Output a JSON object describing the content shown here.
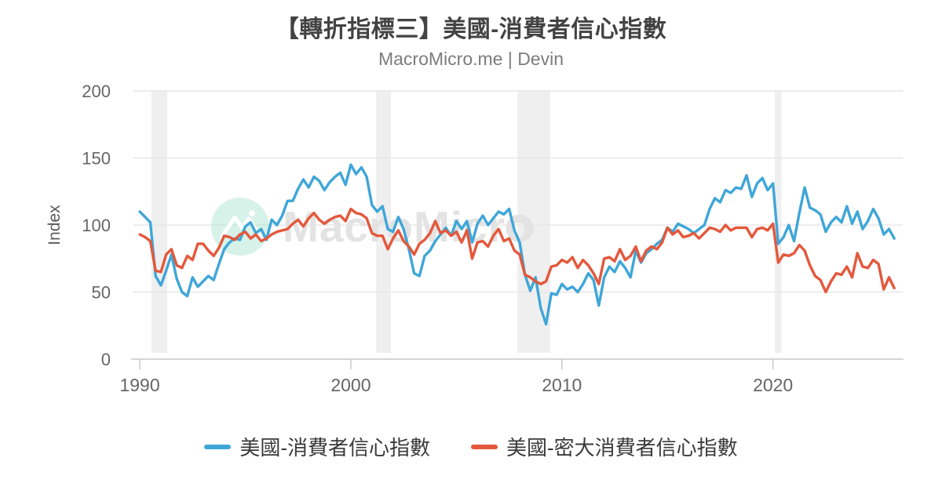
{
  "page": {
    "title": "【轉折指標三】美國-消費者信心指數",
    "subtitle": "MacroMicro.me | Devin"
  },
  "watermark": {
    "text": "MacroMicro",
    "icon": "mountain-logo",
    "circle_color": "#aee6d4",
    "text_color": "#e3e3e3"
  },
  "chart_data": {
    "type": "line",
    "title": "【轉折指標三】美國-消費者信心指數",
    "subtitle": "MacroMicro.me | Devin",
    "xlabel": "",
    "ylabel": "Index",
    "ylim": [
      0,
      200
    ],
    "xlim": [
      1989.7,
      2026.15
    ],
    "y_ticks": [
      0,
      50,
      100,
      150,
      200
    ],
    "x_ticks": [
      1990,
      2000,
      2010,
      2020
    ],
    "grid": "horizontal-only",
    "legend_position": "bottom-center",
    "band_color": "#efefef",
    "recession_bands_x": [
      [
        1990.55,
        1991.3
      ],
      [
        2001.2,
        2001.9
      ],
      [
        2007.9,
        2009.45
      ],
      [
        2020.08,
        2020.4
      ]
    ],
    "x_start": 1990,
    "x_step_years": 0.25,
    "x_end": 2025.75,
    "series": [
      {
        "name": "美國-消費者信心指數",
        "color": "#3FA6D8",
        "values": [
          110,
          106,
          102,
          62,
          55,
          66,
          78,
          60,
          50,
          47,
          61,
          54,
          58,
          62,
          59,
          71,
          82,
          87,
          90,
          89,
          99,
          102,
          94,
          97,
          89,
          104,
          100,
          107,
          118,
          118,
          127,
          134,
          128,
          136,
          133,
          126,
          132,
          136,
          139,
          130,
          145,
          138,
          143,
          136,
          115,
          110,
          114,
          97,
          95,
          106,
          97,
          82,
          64,
          62,
          77,
          81,
          88,
          93,
          98,
          92,
          103,
          97,
          103,
          87,
          101,
          107,
          100,
          105,
          110,
          108,
          112,
          96,
          87,
          63,
          51,
          61,
          38,
          26,
          49,
          48,
          56,
          52,
          54,
          50,
          56,
          64,
          59,
          40,
          61,
          69,
          65,
          73,
          68,
          61,
          81,
          72,
          79,
          82,
          86,
          89,
          98,
          95,
          101,
          99,
          97,
          94,
          97,
          100,
          112,
          120,
          117,
          126,
          124,
          128,
          127,
          137,
          121,
          131,
          135,
          126,
          131,
          86,
          91,
          100,
          88,
          109,
          128,
          113,
          111,
          108,
          95,
          102,
          106,
          102,
          114,
          101,
          110,
          97,
          103,
          112,
          105,
          93,
          97,
          90
        ]
      },
      {
        "name": "美國-密大消費者信心指數",
        "color": "#E4583C",
        "values": [
          93,
          91,
          88,
          66,
          65,
          78,
          82,
          70,
          68,
          77,
          74,
          86,
          86,
          81,
          77,
          83,
          92,
          91,
          89,
          93,
          95,
          90,
          93,
          88,
          90,
          93,
          95,
          96,
          97,
          101,
          104,
          99,
          105,
          109,
          104,
          101,
          104,
          106,
          107,
          103,
          112,
          109,
          108,
          105,
          94,
          92,
          92,
          82,
          90,
          96,
          88,
          84,
          78,
          86,
          89,
          94,
          103,
          94,
          96,
          92,
          95,
          87,
          96,
          75,
          87,
          88,
          84,
          92,
          97,
          88,
          90,
          81,
          78,
          63,
          61,
          58,
          56,
          58,
          69,
          70,
          74,
          72,
          76,
          68,
          74,
          70,
          64,
          56,
          75,
          76,
          73,
          82,
          74,
          77,
          84,
          73,
          81,
          84,
          82,
          87,
          98,
          93,
          96,
          91,
          92,
          94,
          90,
          94,
          98,
          97,
          95,
          100,
          96,
          98,
          98,
          98,
          91,
          97,
          98,
          96,
          101,
          72,
          78,
          77,
          79,
          85,
          81,
          70,
          62,
          59,
          50,
          58,
          64,
          63,
          69,
          61,
          79,
          69,
          68,
          74,
          71,
          52,
          61,
          53
        ]
      }
    ]
  }
}
